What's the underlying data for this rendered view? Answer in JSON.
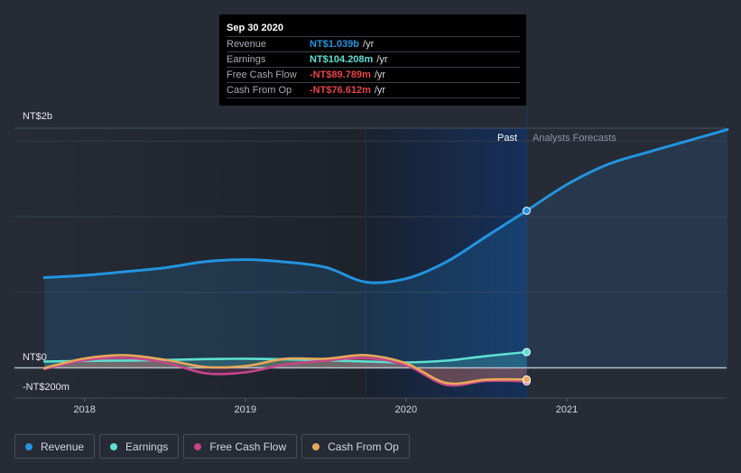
{
  "tooltip": {
    "title": "Sep 30 2020",
    "rows": [
      {
        "label": "Revenue",
        "value": "NT$1.039b",
        "unit": "/yr",
        "color": "#2394df"
      },
      {
        "label": "Earnings",
        "value": "NT$104.208m",
        "unit": "/yr",
        "color": "#5de0d0"
      },
      {
        "label": "Free Cash Flow",
        "value": "-NT$89.789m",
        "unit": "/yr",
        "color": "#e8434a"
      },
      {
        "label": "Cash From Op",
        "value": "-NT$76.612m",
        "unit": "/yr",
        "color": "#e8434a"
      }
    ]
  },
  "legend": [
    {
      "label": "Revenue",
      "color": "#2394df"
    },
    {
      "label": "Earnings",
      "color": "#5de0d0"
    },
    {
      "label": "Free Cash Flow",
      "color": "#c5468a"
    },
    {
      "label": "Cash From Op",
      "color": "#e8a85a"
    }
  ],
  "chart_data": {
    "type": "line",
    "title": "",
    "xlabel": "",
    "ylabel": "",
    "units": "NT$ millions (trailing twelve months)",
    "xlim": [
      2017.65,
      2022.0
    ],
    "ylim": [
      -200,
      1585
    ],
    "y_axis_labels": {
      "top": "NT$2b",
      "zero": "NT$0",
      "bottom": "-NT$200m"
    },
    "gridlines": [
      500,
      1000,
      1500
    ],
    "x_ticks": [
      {
        "label": "2018",
        "value": 2018
      },
      {
        "label": "2019",
        "value": 2019
      },
      {
        "label": "2020",
        "value": 2020
      },
      {
        "label": "2021",
        "value": 2021
      }
    ],
    "regions": {
      "past": {
        "label": "Past",
        "from": 2019.75,
        "to": 2020.75
      },
      "forecast": {
        "label": "Analysts Forecasts",
        "from": 2020.75
      }
    },
    "x": [
      2017.75,
      2018.0,
      2018.25,
      2018.5,
      2018.75,
      2019.0,
      2019.25,
      2019.5,
      2019.75,
      2020.0,
      2020.25,
      2020.5,
      2020.75
    ],
    "series": [
      {
        "name": "Revenue",
        "key": "revenue",
        "color": "#2394df",
        "values": [
          597,
          612,
          636,
          662,
          702,
          716,
          700,
          665,
          567,
          590,
          700,
          870,
          1039
        ]
      },
      {
        "name": "Earnings",
        "key": "earnings",
        "color": "#5de0d0",
        "values": [
          42,
          46,
          48,
          52,
          58,
          60,
          56,
          50,
          42,
          36,
          48,
          78,
          104.208
        ]
      },
      {
        "name": "Free Cash Flow",
        "key": "fcf",
        "color": "#c5468a",
        "values": [
          -8,
          50,
          66,
          36,
          -36,
          -30,
          22,
          48,
          66,
          18,
          -112,
          -86,
          -89.789
        ]
      },
      {
        "name": "Cash From Op",
        "key": "cfo",
        "color": "#e8a85a",
        "values": [
          -2,
          62,
          84,
          54,
          6,
          12,
          60,
          60,
          84,
          30,
          -100,
          -78,
          -76.612
        ]
      }
    ],
    "forecast": {
      "name": "Revenue forecast",
      "color": "#2394df",
      "x": [
        2020.75,
        2021.0,
        2021.25,
        2021.5,
        2021.75,
        2022.0
      ],
      "values": [
        1039,
        1212,
        1343,
        1425,
        1500,
        1576
      ]
    }
  }
}
